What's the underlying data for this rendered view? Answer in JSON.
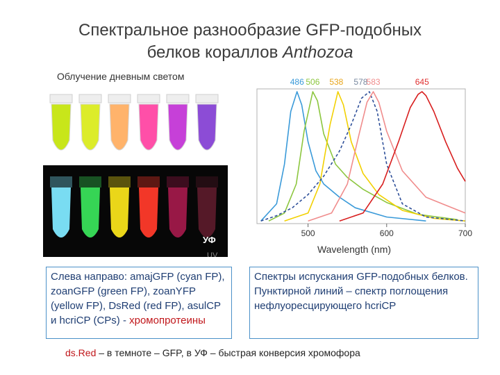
{
  "title": {
    "line1": "Спектральное разнообразие GFP-подобных",
    "line2_prefix": "белков кораллов ",
    "line2_italic": "Anthozoa"
  },
  "photo": {
    "daylight_caption": "Облучение дневным светом",
    "uv_label": "УФ",
    "uv_label_en": "UV",
    "tubes_daylight": [
      "#c8e61a",
      "#dcec2a",
      "#ffb36b",
      "#ff4fa8",
      "#c640d8",
      "#8c4cd6"
    ],
    "tubes_uv": [
      "#7fe8ff",
      "#39e05a",
      "#f7e21a",
      "#ff3a2a",
      "#a0194a",
      "#5a1a2a"
    ]
  },
  "chart_data": {
    "type": "line",
    "title": "",
    "xlabel": "Wavelength (nm)",
    "ylabel": "",
    "xlim": [
      435,
      700
    ],
    "ylim": [
      0,
      1
    ],
    "xticks": [
      500,
      600,
      700
    ],
    "peak_labels": [
      {
        "text": "486",
        "color": "#3a9ad9"
      },
      {
        "text": "506",
        "color": "#8cc63f"
      },
      {
        "text": "538",
        "color": "#e8a51c"
      },
      {
        "text": "578",
        "color": "#7a8aa0"
      },
      {
        "text": "583",
        "color": "#f08c8c"
      },
      {
        "text": "645",
        "color": "#e03030"
      }
    ],
    "series": [
      {
        "color": "#3a9ad9",
        "style": "solid",
        "peak": 486,
        "x": [
          440,
          460,
          470,
          478,
          486,
          492,
          500,
          510,
          520,
          540,
          560,
          600,
          650
        ],
        "y": [
          0.02,
          0.15,
          0.45,
          0.85,
          1.0,
          0.9,
          0.62,
          0.4,
          0.3,
          0.2,
          0.12,
          0.05,
          0.02
        ]
      },
      {
        "color": "#8cc63f",
        "style": "solid",
        "peak": 506,
        "x": [
          450,
          470,
          485,
          495,
          506,
          512,
          520,
          535,
          550,
          570,
          600,
          640,
          690
        ],
        "y": [
          0.02,
          0.08,
          0.3,
          0.7,
          1.0,
          0.93,
          0.68,
          0.45,
          0.35,
          0.26,
          0.16,
          0.07,
          0.03
        ]
      },
      {
        "color": "#f2d000",
        "style": "solid",
        "peak": 538,
        "x": [
          470,
          500,
          515,
          528,
          538,
          545,
          555,
          570,
          590,
          620,
          660,
          700
        ],
        "y": [
          0.02,
          0.08,
          0.3,
          0.75,
          1.0,
          0.9,
          0.62,
          0.38,
          0.22,
          0.1,
          0.04,
          0.02
        ]
      },
      {
        "color": "#2e4f99",
        "style": "dashed",
        "peak": 578,
        "x": [
          440,
          460,
          480,
          500,
          520,
          540,
          555,
          568,
          578,
          588,
          600,
          620,
          650,
          700
        ],
        "y": [
          0.02,
          0.06,
          0.12,
          0.22,
          0.36,
          0.55,
          0.75,
          0.95,
          1.0,
          0.85,
          0.45,
          0.15,
          0.05,
          0.02
        ]
      },
      {
        "color": "#f08c8c",
        "style": "solid",
        "peak": 583,
        "x": [
          500,
          530,
          550,
          565,
          575,
          583,
          590,
          600,
          620,
          650,
          700
        ],
        "y": [
          0.02,
          0.08,
          0.3,
          0.68,
          0.92,
          1.0,
          0.92,
          0.7,
          0.4,
          0.2,
          0.08
        ]
      },
      {
        "color": "#d81e1e",
        "style": "solid",
        "peak": 645,
        "x": [
          540,
          570,
          595,
          615,
          630,
          640,
          645,
          650,
          660,
          675,
          690,
          700
        ],
        "y": [
          0.02,
          0.08,
          0.3,
          0.62,
          0.88,
          0.98,
          1.0,
          0.97,
          0.85,
          0.62,
          0.42,
          0.32
        ]
      }
    ]
  },
  "left_box": {
    "text": "Слева направо: amajGFP (cyan FP), zoanGFP (green FP), zoanYFP (yellow FP), DsRed (red FP), asulCP и hcriCP (CPs) - ",
    "red": "хромопротеины"
  },
  "right_box": {
    "text": "Спектры испускания GFP-подобных белков. Пунктирной линий – спектр поглощения нефлуоресцирующего hcriCP"
  },
  "footer": {
    "red": "ds.Red",
    "text": " – в темноте – GFP, в УФ – быстрая конверсия хромофора"
  }
}
